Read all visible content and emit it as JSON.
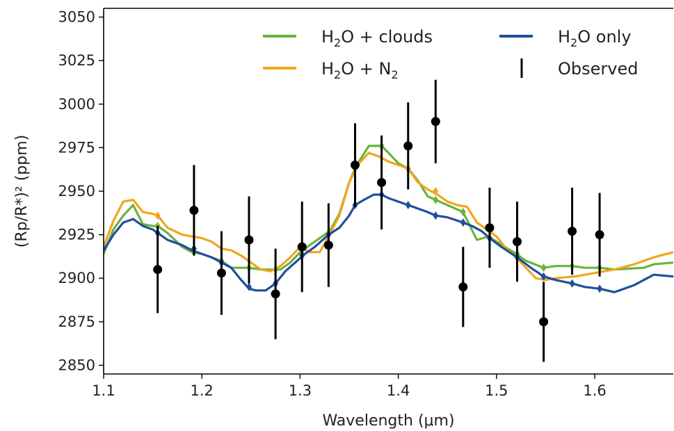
{
  "chart_data": {
    "type": "line",
    "title": "",
    "xlabel": "Wavelength (μm)",
    "ylabel": "(Rp/R*)² (ppm)",
    "xlim": [
      1.1,
      1.68
    ],
    "ylim": [
      2845,
      3055
    ],
    "xticks": [
      1.1,
      1.2,
      1.3,
      1.4,
      1.5,
      1.6
    ],
    "xtick_labels": [
      "1.1",
      "1.2",
      "1.3",
      "1.4",
      "1.5",
      "1.6"
    ],
    "yticks": [
      2850,
      2875,
      2900,
      2925,
      2950,
      2975,
      3000,
      3025,
      3050
    ],
    "ytick_labels": [
      "2850",
      "2875",
      "2900",
      "2925",
      "2950",
      "2975",
      "3000",
      "3025",
      "3050"
    ],
    "grid": false,
    "legend_position": "top-right",
    "legend": [
      {
        "label_main": "H",
        "label_sub": "2",
        "label_rest": "O + clouds",
        "kind": "line",
        "color": "#6ab33b"
      },
      {
        "label_main": "H",
        "label_sub": "2",
        "label_rest": "O only",
        "kind": "line",
        "color": "#1f4e9c"
      },
      {
        "label_main": "H",
        "label_sub": "2",
        "label_rest": "O + N",
        "label_sub2": "2",
        "kind": "line",
        "color": "#f2a51c"
      },
      {
        "label_main": "",
        "label_sub": "",
        "label_rest": "Observed",
        "kind": "errorbar",
        "color": "#000000"
      }
    ],
    "series": [
      {
        "key": "clouds",
        "color": "#6ab33b",
        "x": [
          1.1,
          1.11,
          1.12,
          1.13,
          1.14,
          1.15,
          1.155,
          1.165,
          1.18,
          1.19,
          1.2,
          1.21,
          1.22,
          1.23,
          1.24,
          1.248,
          1.26,
          1.27,
          1.28,
          1.29,
          1.3,
          1.31,
          1.32,
          1.33,
          1.34,
          1.35,
          1.356,
          1.36,
          1.37,
          1.38,
          1.383,
          1.39,
          1.4,
          1.41,
          1.42,
          1.43,
          1.438,
          1.45,
          1.466,
          1.48,
          1.492,
          1.5,
          1.52,
          1.53,
          1.548,
          1.56,
          1.577,
          1.59,
          1.605,
          1.62,
          1.65,
          1.66,
          1.68
        ],
        "y": [
          2914,
          2928,
          2936,
          2942,
          2931,
          2930,
          2930,
          2926,
          2918,
          2915,
          2914,
          2912,
          2910,
          2906,
          2906,
          2906,
          2905,
          2905,
          2905,
          2909,
          2915,
          2919,
          2923,
          2927,
          2937,
          2955,
          2963,
          2967,
          2976,
          2976,
          2976,
          2972,
          2966,
          2963,
          2956,
          2947,
          2945,
          2942,
          2938,
          2922,
          2924,
          2921,
          2914,
          2910,
          2906,
          2907,
          2907,
          2906,
          2906,
          2905,
          2906,
          2908,
          2909
        ],
        "markers_x": [
          1.155,
          1.192,
          1.22,
          1.248,
          1.275,
          1.302,
          1.329,
          1.356,
          1.383,
          1.41,
          1.438,
          1.466,
          1.493,
          1.521,
          1.548,
          1.577,
          1.605
        ],
        "markers_y": [
          2930,
          2915,
          2910,
          2906,
          2905,
          2914,
          2926,
          2963,
          2976,
          2963,
          2945,
          2938,
          2923,
          2914,
          2906,
          2907,
          2906
        ]
      },
      {
        "key": "n2",
        "color": "#f2a51c",
        "x": [
          1.1,
          1.11,
          1.12,
          1.13,
          1.14,
          1.15,
          1.155,
          1.165,
          1.18,
          1.19,
          1.2,
          1.21,
          1.22,
          1.23,
          1.24,
          1.25,
          1.26,
          1.27,
          1.28,
          1.29,
          1.3,
          1.31,
          1.32,
          1.33,
          1.34,
          1.35,
          1.36,
          1.37,
          1.38,
          1.39,
          1.4,
          1.41,
          1.42,
          1.43,
          1.44,
          1.45,
          1.46,
          1.47,
          1.48,
          1.49,
          1.5,
          1.51,
          1.52,
          1.53,
          1.54,
          1.55,
          1.56,
          1.58,
          1.6,
          1.62,
          1.64,
          1.66,
          1.68
        ],
        "y": [
          2918,
          2933,
          2944,
          2945,
          2938,
          2937,
          2936,
          2929,
          2925,
          2924,
          2923,
          2921,
          2917,
          2916,
          2913,
          2909,
          2905,
          2904,
          2907,
          2912,
          2918,
          2915,
          2915,
          2925,
          2936,
          2955,
          2966,
          2972,
          2970,
          2967,
          2965,
          2963,
          2955,
          2951,
          2948,
          2944,
          2942,
          2941,
          2932,
          2928,
          2924,
          2917,
          2912,
          2906,
          2900,
          2899,
          2900,
          2901,
          2903,
          2905,
          2908,
          2912,
          2915
        ],
        "markers_x": [
          1.155,
          1.438
        ],
        "markers_y": [
          2936,
          2950
        ]
      },
      {
        "key": "only",
        "color": "#1f4e9c",
        "x": [
          1.1,
          1.11,
          1.12,
          1.13,
          1.14,
          1.15,
          1.155,
          1.165,
          1.18,
          1.19,
          1.2,
          1.21,
          1.22,
          1.23,
          1.24,
          1.248,
          1.255,
          1.265,
          1.275,
          1.285,
          1.295,
          1.305,
          1.315,
          1.329,
          1.34,
          1.35,
          1.356,
          1.365,
          1.375,
          1.383,
          1.39,
          1.4,
          1.41,
          1.42,
          1.43,
          1.438,
          1.45,
          1.466,
          1.475,
          1.485,
          1.493,
          1.505,
          1.521,
          1.535,
          1.548,
          1.56,
          1.577,
          1.59,
          1.605,
          1.62,
          1.64,
          1.66,
          1.68
        ],
        "y": [
          2916,
          2925,
          2932,
          2934,
          2930,
          2928,
          2926,
          2922,
          2919,
          2916,
          2914,
          2912,
          2909,
          2906,
          2899,
          2894,
          2893,
          2893,
          2897,
          2904,
          2909,
          2914,
          2918,
          2925,
          2929,
          2936,
          2942,
          2945,
          2948,
          2948,
          2946,
          2944,
          2942,
          2940,
          2938,
          2936,
          2935,
          2932,
          2930,
          2927,
          2923,
          2918,
          2912,
          2906,
          2901,
          2899,
          2897,
          2895,
          2894,
          2892,
          2896,
          2902,
          2901
        ],
        "markers_x": [
          1.155,
          1.192,
          1.22,
          1.248,
          1.275,
          1.302,
          1.329,
          1.356,
          1.383,
          1.41,
          1.438,
          1.466,
          1.493,
          1.521,
          1.548,
          1.577,
          1.605
        ],
        "markers_y": [
          2926,
          2917,
          2909,
          2895,
          2897,
          2913,
          2925,
          2942,
          2948,
          2942,
          2936,
          2932,
          2923,
          2912,
          2901,
          2897,
          2894
        ]
      }
    ],
    "observed": {
      "color": "#000000",
      "x": [
        1.155,
        1.192,
        1.22,
        1.248,
        1.275,
        1.302,
        1.329,
        1.356,
        1.383,
        1.41,
        1.438,
        1.466,
        1.493,
        1.521,
        1.548,
        1.577,
        1.605
      ],
      "y": [
        2905,
        2939,
        2903,
        2922,
        2891,
        2918,
        2919,
        2965,
        2955,
        2976,
        2990,
        2895,
        2929,
        2921,
        2875,
        2927,
        2925
      ],
      "err": [
        25,
        26,
        24,
        25,
        26,
        26,
        24,
        24,
        27,
        25,
        24,
        23,
        23,
        23,
        23,
        25,
        24
      ]
    }
  }
}
